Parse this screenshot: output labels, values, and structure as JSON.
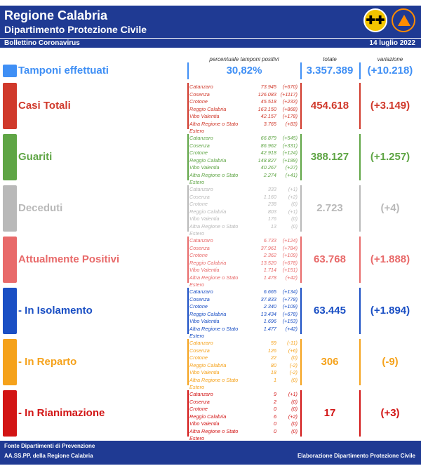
{
  "header": {
    "title": "Regione Calabria",
    "subtitle": "Dipartimento Protezione Civile",
    "bulletin": "Bollettino Coronavirus",
    "date": "14 luglio 2022"
  },
  "colheads": {
    "perc": "percentuale tamponi positivi",
    "total": "totale",
    "var": "variazione"
  },
  "tamponi": {
    "label": "Tamponi effettuati",
    "perc": "30,82%",
    "total": "3.357.389",
    "var": "(+10.218)",
    "color": "#3f8ff5"
  },
  "sections": [
    {
      "label": "Casi Totali",
      "color": "#d0392b",
      "total": "454.618",
      "var": "(+3.149)",
      "rows": [
        {
          "name": "Catanzaro",
          "value": "73.945",
          "delta": "(+670)"
        },
        {
          "name": "Cosenza",
          "value": "126.083",
          "delta": "(+1117)"
        },
        {
          "name": "Crotone",
          "value": "45.518",
          "delta": "(+233)"
        },
        {
          "name": "Reggio Calabria",
          "value": "163.150",
          "delta": "(+868)"
        },
        {
          "name": "Vibo Valentia",
          "value": "42.157",
          "delta": "(+178)"
        },
        {
          "name": "Altra Regione o Stato Estero",
          "value": "3.765",
          "delta": "(+83)"
        }
      ]
    },
    {
      "label": "Guariti",
      "color": "#5fa545",
      "total": "388.127",
      "var": "(+1.257)",
      "rows": [
        {
          "name": "Catanzaro",
          "value": "66.879",
          "delta": "(+545)"
        },
        {
          "name": "Cosenza",
          "value": "86.962",
          "delta": "(+331)"
        },
        {
          "name": "Crotone",
          "value": "42.918",
          "delta": "(+124)"
        },
        {
          "name": "Reggio Calabria",
          "value": "148.827",
          "delta": "(+189)"
        },
        {
          "name": "Vibo Valentia",
          "value": "40.267",
          "delta": "(+27)"
        },
        {
          "name": "Altra Regione o Stato Estero",
          "value": "2.274",
          "delta": "(+41)"
        }
      ]
    },
    {
      "label": "Deceduti",
      "color": "#b9b9b9",
      "total": "2.723",
      "var": "(+4)",
      "rows": [
        {
          "name": "Catanzaro",
          "value": "333",
          "delta": "(+1)"
        },
        {
          "name": "Cosenza",
          "value": "1.160",
          "delta": "(+2)"
        },
        {
          "name": "Crotone",
          "value": "238",
          "delta": "(0)"
        },
        {
          "name": "Reggio Calabria",
          "value": "803",
          "delta": "(+1)"
        },
        {
          "name": "Vibo Valentia",
          "value": "176",
          "delta": "(0)"
        },
        {
          "name": "Altra Regione o Stato Estero",
          "value": "13",
          "delta": "(0)"
        }
      ]
    },
    {
      "label": "Attualmente Positivi",
      "color": "#e86a6a",
      "total": "63.768",
      "var": "(+1.888)",
      "rows": [
        {
          "name": "Catanzaro",
          "value": "6.733",
          "delta": "(+124)"
        },
        {
          "name": "Cosenza",
          "value": "37.961",
          "delta": "(+784)"
        },
        {
          "name": "Crotone",
          "value": "2.362",
          "delta": "(+109)"
        },
        {
          "name": "Reggio Calabria",
          "value": "13.520",
          "delta": "(+678)"
        },
        {
          "name": "Vibo Valentia",
          "value": "1.714",
          "delta": "(+151)"
        },
        {
          "name": "Altra Regione o Stato Estero",
          "value": "1.478",
          "delta": "(+42)"
        }
      ]
    },
    {
      "label": "- In Isolamento",
      "color": "#1a4fc4",
      "total": "63.445",
      "var": "(+1.894)",
      "rows": [
        {
          "name": "Catanzaro",
          "value": "6.665",
          "delta": "(+134)"
        },
        {
          "name": "Cosenza",
          "value": "37.833",
          "delta": "(+778)"
        },
        {
          "name": "Crotone",
          "value": "2.340",
          "delta": "(+109)"
        },
        {
          "name": "Reggio Calabria",
          "value": "13.434",
          "delta": "(+678)"
        },
        {
          "name": "Vibo Valentia",
          "value": "1.696",
          "delta": "(+153)"
        },
        {
          "name": "Altra Regione o Stato Estero",
          "value": "1.477",
          "delta": "(+42)"
        }
      ]
    },
    {
      "label": "- In Reparto",
      "color": "#f5a21b",
      "total": "306",
      "var": "(-9)",
      "rows": [
        {
          "name": "Catanzaro",
          "value": "59",
          "delta": "(-11)"
        },
        {
          "name": "Cosenza",
          "value": "126",
          "delta": "(+6)"
        },
        {
          "name": "Crotone",
          "value": "22",
          "delta": "(0)"
        },
        {
          "name": "Reggio Calabria",
          "value": "80",
          "delta": "(-2)"
        },
        {
          "name": "Vibo Valentia",
          "value": "18",
          "delta": "(-2)"
        },
        {
          "name": "Altra Regione o Stato Estero",
          "value": "1",
          "delta": "(0)"
        }
      ]
    },
    {
      "label": "- In Rianimazione",
      "color": "#d21414",
      "total": "17",
      "var": "(+3)",
      "rows": [
        {
          "name": "Catanzaro",
          "value": "9",
          "delta": "(+1)"
        },
        {
          "name": "Cosenza",
          "value": "2",
          "delta": "(0)"
        },
        {
          "name": "Crotone",
          "value": "0",
          "delta": "(0)"
        },
        {
          "name": "Reggio Calabria",
          "value": "6",
          "delta": "(+2)"
        },
        {
          "name": "Vibo Valentia",
          "value": "0",
          "delta": "(0)"
        },
        {
          "name": "Altra Regione o Stato Estero",
          "value": "0",
          "delta": "(0)"
        }
      ]
    }
  ],
  "footer": {
    "line1": "Fonte Dipartimenti di Prevenzione",
    "line2": "AA.SS.PP.  della Regione Calabria",
    "right": "Elaborazione Dipartimento Protezione Civile"
  }
}
